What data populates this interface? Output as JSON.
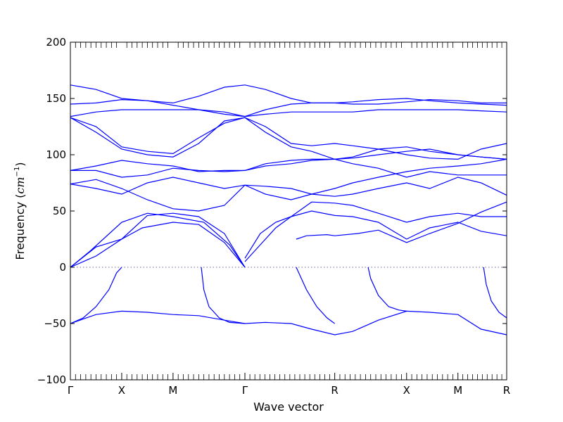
{
  "chart_data": {
    "type": "line",
    "xlabel": "Wave vector",
    "ylabel": "Frequency (cm⁻¹)",
    "ylabel_text": "Frequency (",
    "ylabel_unit": "cm",
    "ylabel_exp": "−1",
    "ylabel_close": ")",
    "ylim": [
      -100,
      200
    ],
    "yticks": [
      -100,
      -50,
      0,
      50,
      100,
      150,
      200
    ],
    "xlim": [
      0,
      8.5
    ],
    "high_symmetry_points": [
      {
        "label": "Γ",
        "x": 0
      },
      {
        "label": "X",
        "x": 1
      },
      {
        "label": "M",
        "x": 2
      },
      {
        "label": "Γ",
        "x": 3.4
      },
      {
        "label": "R",
        "x": 5.15
      },
      {
        "label": "X",
        "x": 6.55
      },
      {
        "label": "M",
        "x": 7.55
      },
      {
        "label": "R",
        "x": 8.5
      }
    ],
    "zero_line": true,
    "grid": false,
    "line_color": "#0000ff",
    "series": [
      {
        "x": [
          0,
          0.5,
          1,
          1.5,
          2,
          2.5,
          3,
          3.4,
          3.8,
          4.3,
          4.7,
          5.15,
          5.5,
          6,
          6.55,
          7,
          7.55,
          8,
          8.5
        ],
        "y": [
          -50,
          -42,
          -39,
          -40,
          -42,
          -43,
          -47,
          -50,
          -49,
          -50,
          -55,
          -60,
          -57,
          -47,
          -39,
          -40,
          -42,
          -55,
          -60
        ]
      },
      {
        "x": [
          0,
          0.25,
          0.5,
          0.75,
          0.9,
          1
        ],
        "y": [
          -50,
          -45,
          -35,
          -20,
          -5,
          0
        ]
      },
      {
        "x": [
          2.55,
          2.6,
          2.7,
          2.9,
          3.1,
          3.4
        ],
        "y": [
          0,
          -20,
          -35,
          -45,
          -49,
          -50
        ]
      },
      {
        "x": [
          4.4,
          4.45,
          4.6,
          4.8,
          5,
          5.15
        ],
        "y": [
          0,
          -5,
          -20,
          -35,
          -45,
          -50
        ]
      },
      {
        "x": [
          5.8,
          5.85,
          6,
          6.2,
          6.4,
          6.55
        ],
        "y": [
          0,
          -10,
          -25,
          -35,
          -38,
          -39
        ]
      },
      {
        "x": [
          8.05,
          8.1,
          8.2,
          8.35,
          8.5
        ],
        "y": [
          0,
          -15,
          -30,
          -40,
          -45
        ]
      },
      {
        "x": [
          0,
          0.5,
          1,
          1.4,
          2,
          2.5,
          3,
          3.4
        ],
        "y": [
          0,
          18,
          25,
          35,
          40,
          38,
          22,
          0
        ]
      },
      {
        "x": [
          0,
          0.4,
          1,
          1.5,
          2,
          2.6,
          3.1,
          3.4
        ],
        "y": [
          0,
          15,
          40,
          48,
          45,
          40,
          20,
          0
        ]
      },
      {
        "x": [
          0,
          0.5,
          1,
          1.5,
          2,
          2.5,
          3,
          3.4
        ],
        "y": [
          0,
          10,
          25,
          46,
          48,
          45,
          30,
          0
        ]
      },
      {
        "x": [
          3.4,
          3.7,
          4,
          4.3,
          4.7,
          5.15,
          5.5,
          6,
          6.55,
          7,
          7.55,
          8,
          8.5
        ],
        "y": [
          8,
          30,
          40,
          45,
          50,
          46,
          45,
          40,
          25,
          35,
          40,
          32,
          28
        ]
      },
      {
        "x": [
          3.4,
          3.7,
          4,
          4.3,
          4.7,
          5.15,
          5.5,
          6,
          6.55,
          7,
          7.55,
          8,
          8.5
        ],
        "y": [
          5,
          20,
          35,
          45,
          58,
          57,
          55,
          48,
          40,
          45,
          48,
          45,
          45
        ]
      },
      {
        "x": [
          4.4,
          4.6,
          5,
          5.15,
          5.6,
          6,
          6.55,
          7,
          7.55,
          8,
          8.5
        ],
        "y": [
          25,
          28,
          29,
          28,
          30,
          33,
          22,
          30,
          39,
          49,
          58
        ]
      },
      {
        "x": [
          0,
          0.5,
          1,
          1.5,
          2,
          2.5,
          3,
          3.4
        ],
        "y": [
          74,
          78,
          70,
          60,
          52,
          50,
          55,
          73
        ]
      },
      {
        "x": [
          0,
          0.5,
          1,
          1.5,
          2,
          2.5,
          3,
          3.4
        ],
        "y": [
          74,
          70,
          65,
          75,
          80,
          75,
          70,
          73
        ]
      },
      {
        "x": [
          0,
          0.5,
          1,
          1.5,
          2,
          2.5,
          3,
          3.4
        ],
        "y": [
          86,
          86,
          80,
          82,
          88,
          86,
          85,
          86
        ]
      },
      {
        "x": [
          0,
          0.5,
          1,
          1.5,
          2,
          2.5,
          3,
          3.4
        ],
        "y": [
          86,
          90,
          95,
          92,
          90,
          85,
          86,
          86
        ]
      },
      {
        "x": [
          3.4,
          3.8,
          4.3,
          4.7,
          5.15,
          5.5,
          6,
          6.55,
          7,
          7.55,
          8,
          8.5
        ],
        "y": [
          73,
          72,
          70,
          65,
          63,
          65,
          70,
          75,
          70,
          80,
          75,
          64
        ]
      },
      {
        "x": [
          3.4,
          3.8,
          4.3,
          4.7,
          5.15,
          5.5,
          6,
          6.55,
          7,
          7.55,
          8,
          8.5
        ],
        "y": [
          73,
          65,
          60,
          65,
          70,
          75,
          80,
          85,
          88,
          90,
          92,
          96
        ]
      },
      {
        "x": [
          3.4,
          3.8,
          4.3,
          4.7,
          5.15,
          5.5,
          6,
          6.55,
          7,
          7.55,
          8,
          8.5
        ],
        "y": [
          86,
          90,
          92,
          95,
          96,
          92,
          88,
          80,
          85,
          82,
          82,
          82
        ]
      },
      {
        "x": [
          3.4,
          3.8,
          4.3,
          4.7,
          5.15,
          5.5,
          6,
          6.55,
          7,
          7.55,
          8,
          8.5
        ],
        "y": [
          86,
          92,
          95,
          96,
          96,
          97,
          100,
          103,
          105,
          100,
          98,
          96
        ]
      },
      {
        "x": [
          0,
          0.5,
          1,
          1.5,
          2,
          2.5,
          3,
          3.4
        ],
        "y": [
          133,
          120,
          105,
          100,
          98,
          110,
          130,
          133
        ]
      },
      {
        "x": [
          0,
          0.5,
          1,
          1.5,
          2,
          2.5,
          3,
          3.4
        ],
        "y": [
          133,
          125,
          107,
          103,
          101,
          115,
          128,
          133
        ]
      },
      {
        "x": [
          3.4,
          3.8,
          4.3,
          4.7,
          5.15,
          5.5,
          6,
          6.55,
          7,
          7.55,
          8,
          8.5
        ],
        "y": [
          133,
          120,
          107,
          103,
          96,
          98,
          105,
          107,
          103,
          100,
          98,
          96
        ]
      },
      {
        "x": [
          3.4,
          3.8,
          4.3,
          4.7,
          5.15,
          5.5,
          6,
          6.55,
          7,
          7.55,
          8,
          8.5
        ],
        "y": [
          133,
          125,
          110,
          108,
          110,
          108,
          105,
          100,
          97,
          96,
          105,
          110
        ]
      },
      {
        "x": [
          0,
          0.5,
          1,
          1.5,
          2,
          2.5,
          3,
          3.4
        ],
        "y": [
          162,
          158,
          150,
          148,
          146,
          152,
          160,
          162
        ]
      },
      {
        "x": [
          0,
          0.5,
          1,
          1.5,
          2,
          2.5,
          3,
          3.4
        ],
        "y": [
          145,
          146,
          149,
          148,
          144,
          140,
          136,
          134
        ]
      },
      {
        "x": [
          0,
          0.5,
          1,
          1.5,
          2,
          2.5,
          3,
          3.4
        ],
        "y": [
          134,
          138,
          140,
          140,
          140,
          140,
          138,
          134
        ]
      },
      {
        "x": [
          3.4,
          3.8,
          4.3,
          4.7,
          5.15,
          5.5,
          6,
          6.55,
          7,
          7.55,
          8,
          8.5
        ],
        "y": [
          162,
          158,
          150,
          146,
          146,
          145,
          145,
          147,
          149,
          148,
          146,
          146
        ]
      },
      {
        "x": [
          3.4,
          3.8,
          4.3,
          4.7,
          5.15,
          5.5,
          6,
          6.55,
          7,
          7.55,
          8,
          8.5
        ],
        "y": [
          134,
          140,
          145,
          146,
          146,
          147,
          149,
          150,
          148,
          146,
          145,
          144
        ]
      },
      {
        "x": [
          3.4,
          3.8,
          4.3,
          4.7,
          5.15,
          5.5,
          6,
          6.55,
          7,
          7.55,
          8,
          8.5
        ],
        "y": [
          134,
          136,
          138,
          138,
          138,
          138,
          140,
          140,
          140,
          140,
          139,
          138
        ]
      }
    ]
  }
}
